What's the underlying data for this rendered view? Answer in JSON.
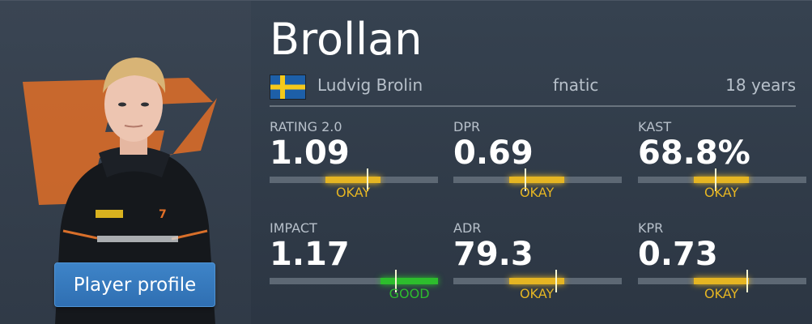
{
  "player": {
    "nickname": "Brollan",
    "real_name": "Ludvig Brolin",
    "team": "fnatic",
    "age": "18 years",
    "country_flag": "sweden-flag"
  },
  "profile_button": {
    "label": "Player profile"
  },
  "colors": {
    "okay": "#e5b523",
    "good": "#2dbd2d",
    "button": "#3577bd",
    "team_logo": "#e26f27"
  },
  "stats": [
    {
      "label": "RATING 2.0",
      "value": "1.09",
      "verdict": "OKAY",
      "range_start": 0.33,
      "range_end": 0.66,
      "marker": 0.58
    },
    {
      "label": "DPR",
      "value": "0.69",
      "verdict": "OKAY",
      "range_start": 0.33,
      "range_end": 0.66,
      "marker": 0.43
    },
    {
      "label": "KAST",
      "value": "68.8%",
      "verdict": "OKAY",
      "range_start": 0.33,
      "range_end": 0.66,
      "marker": 0.46
    },
    {
      "label": "IMPACT",
      "value": "1.17",
      "verdict": "GOOD",
      "range_start": 0.66,
      "range_end": 1.0,
      "marker": 0.75
    },
    {
      "label": "ADR",
      "value": "79.3",
      "verdict": "OKAY",
      "range_start": 0.33,
      "range_end": 0.66,
      "marker": 0.61
    },
    {
      "label": "KPR",
      "value": "0.73",
      "verdict": "OKAY",
      "range_start": 0.33,
      "range_end": 0.66,
      "marker": 0.65
    }
  ]
}
